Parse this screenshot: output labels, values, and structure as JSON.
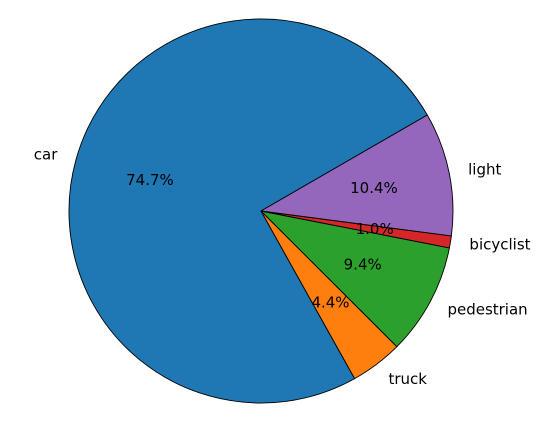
{
  "chart_data": {
    "type": "pie",
    "title": "",
    "slices": [
      {
        "label": "car",
        "value": 74.7,
        "pct_label": "74.7%",
        "color": "#1f77b4"
      },
      {
        "label": "truck",
        "value": 4.4,
        "pct_label": "4.4%",
        "color": "#ff7f0e"
      },
      {
        "label": "pedestrian",
        "value": 9.4,
        "pct_label": "9.4%",
        "color": "#2ca02c"
      },
      {
        "label": "bicyclist",
        "value": 1.0,
        "pct_label": "1.0%",
        "color": "#d62728"
      },
      {
        "label": "light",
        "value": 10.4,
        "pct_label": "10.4%",
        "color": "#9467bd"
      }
    ],
    "start_angle_deg": 30,
    "direction": "counterclockwise",
    "legend": "none"
  }
}
